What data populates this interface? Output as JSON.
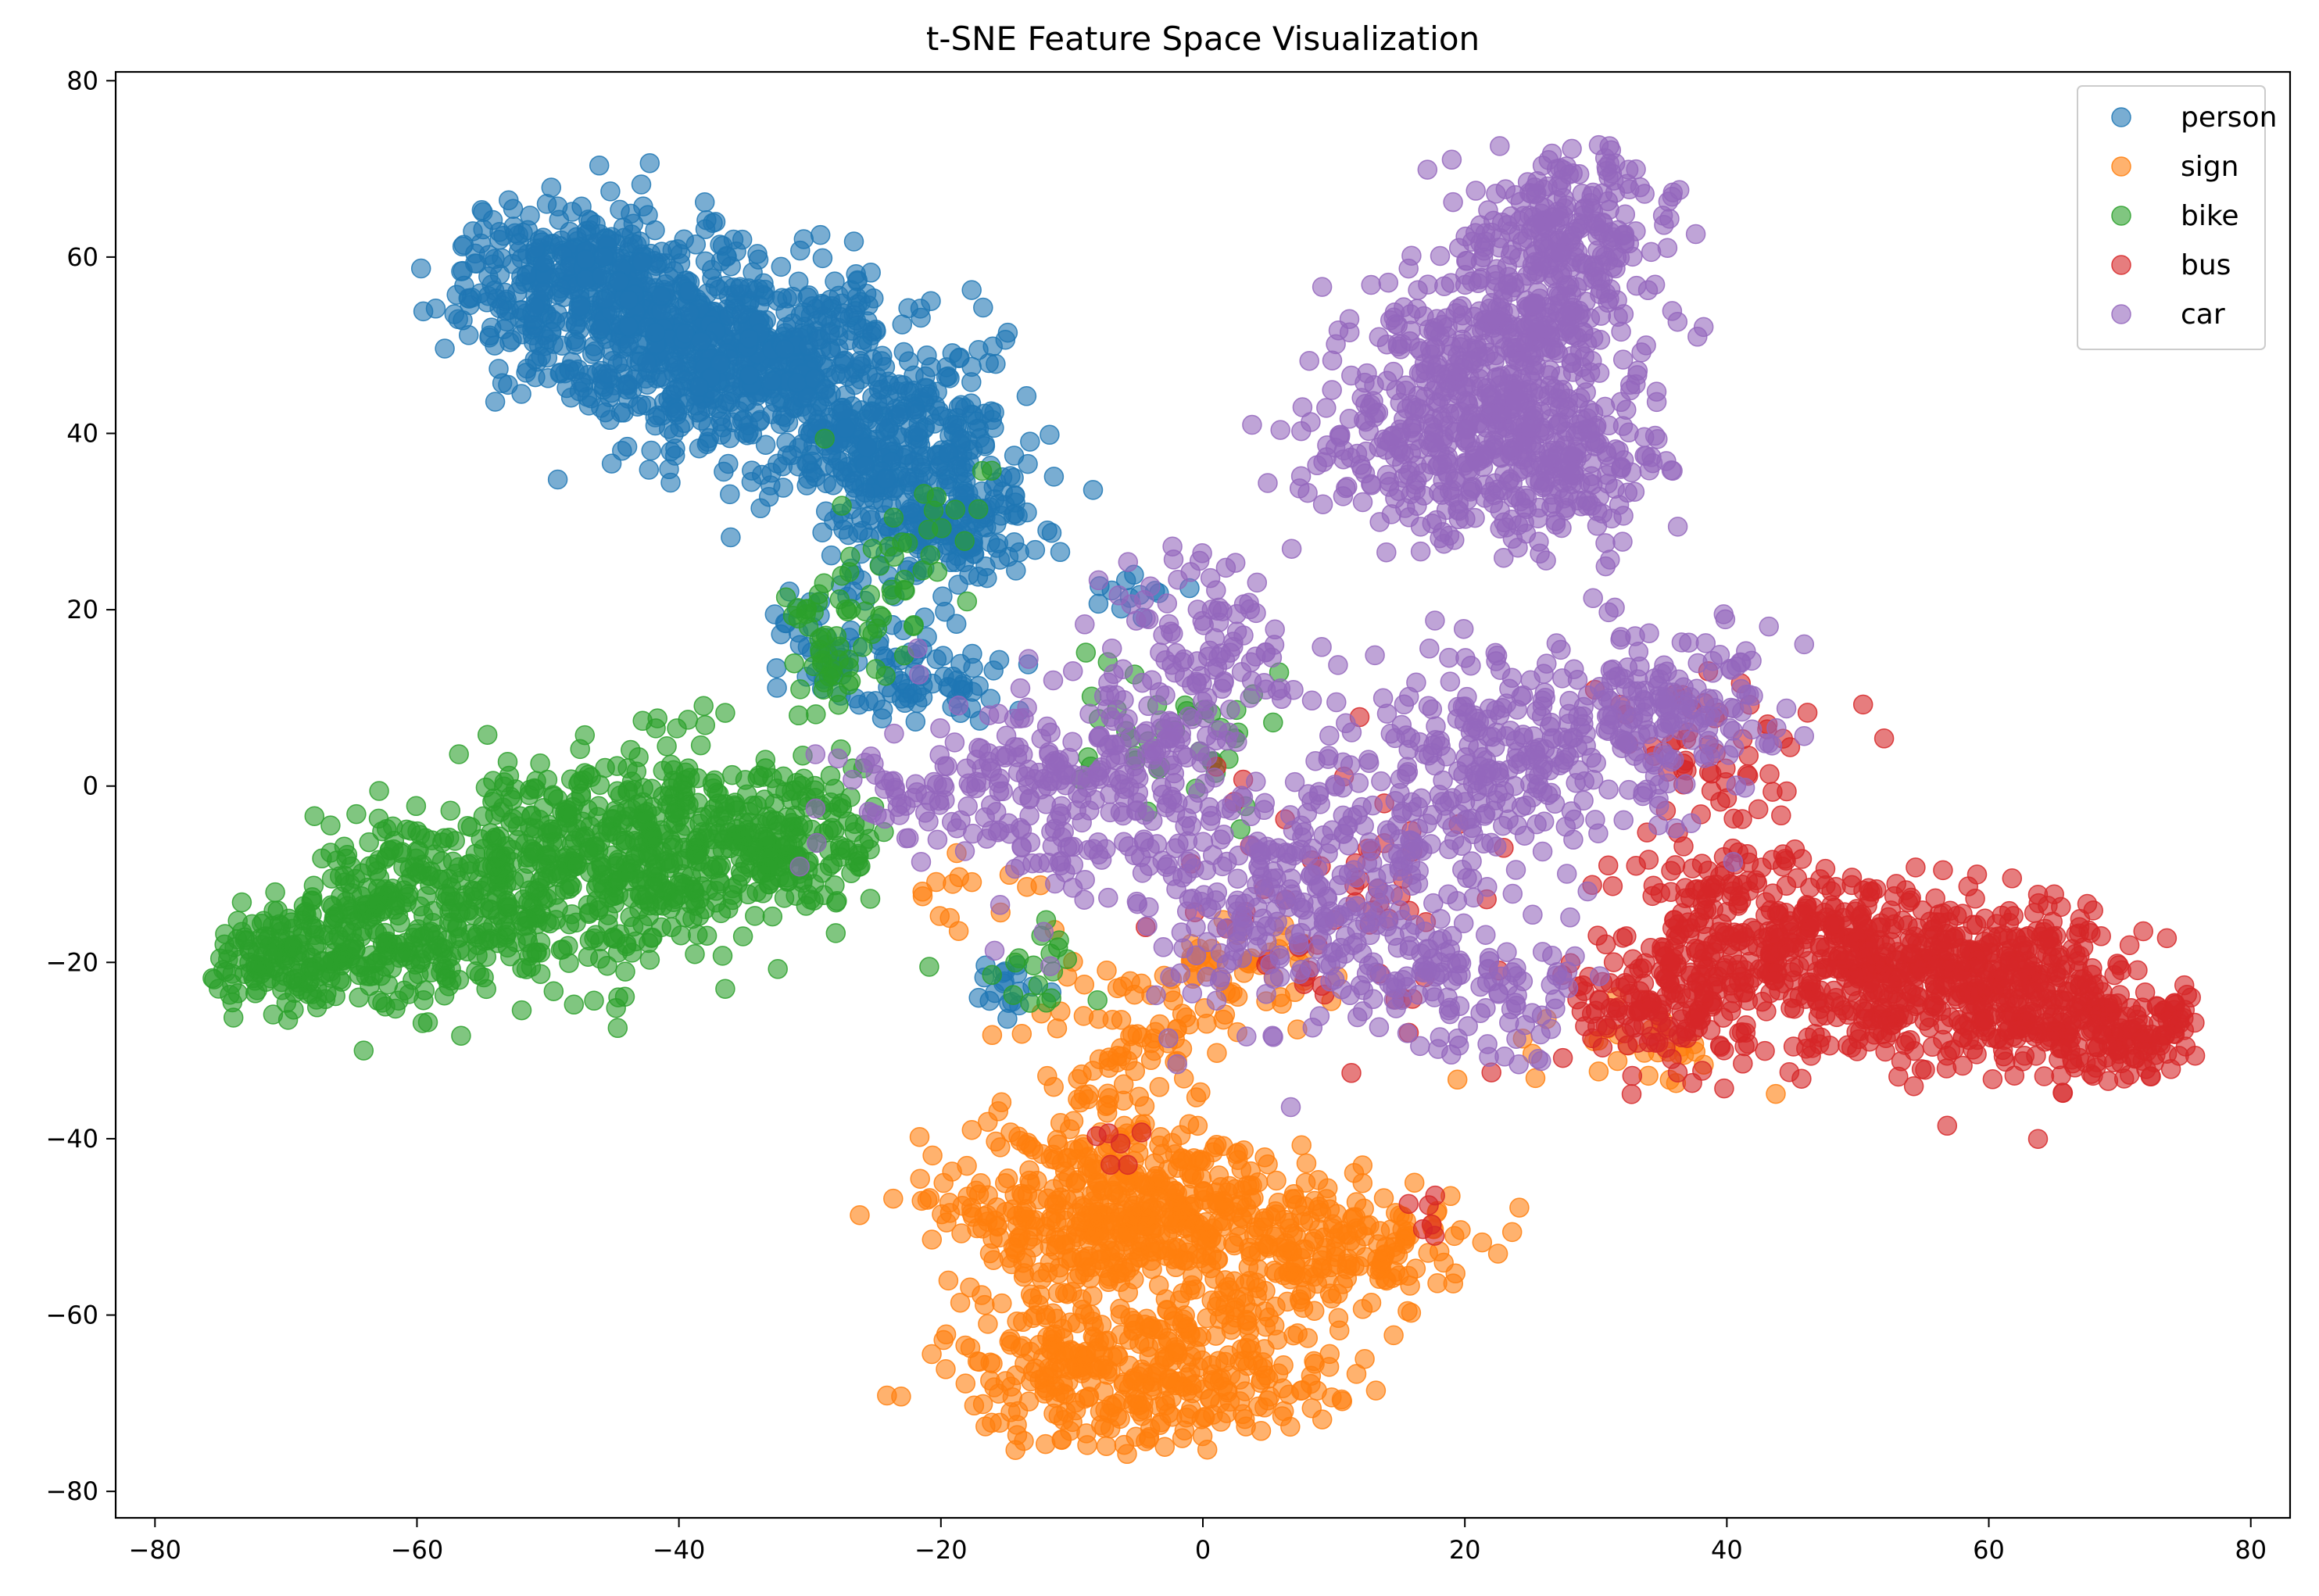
{
  "chart_data": {
    "type": "scatter",
    "title": "t-SNE Feature Space Visualization",
    "xlabel": "",
    "ylabel": "",
    "xlim": [
      -83,
      83
    ],
    "ylim": [
      -83,
      81
    ],
    "xticks": [
      -80,
      -60,
      -40,
      -20,
      0,
      20,
      40,
      60,
      80
    ],
    "yticks": [
      -80,
      -60,
      -40,
      -20,
      0,
      20,
      40,
      60,
      80
    ],
    "grid": false,
    "legend_position": "top-right",
    "marker_alpha": 0.6,
    "series": [
      {
        "name": "person",
        "color": "#1f77b4",
        "clusters": [
          {
            "cx": -48,
            "cy": 57,
            "sx": 4.5,
            "sy": 4.5,
            "n": 380
          },
          {
            "cx": -40,
            "cy": 50,
            "sx": 5.5,
            "sy": 5,
            "n": 380
          },
          {
            "cx": -32,
            "cy": 47,
            "sx": 5,
            "sy": 6,
            "n": 340
          },
          {
            "cx": -24,
            "cy": 40,
            "sx": 4.5,
            "sy": 5,
            "n": 280
          },
          {
            "cx": -20,
            "cy": 30,
            "sx": 4,
            "sy": 4,
            "n": 200
          },
          {
            "cx": -27,
            "cy": 16,
            "sx": 3,
            "sy": 3.5,
            "n": 60
          },
          {
            "cx": -20,
            "cy": 11,
            "sx": 3,
            "sy": 2.5,
            "n": 50
          },
          {
            "cx": -15,
            "cy": -23,
            "sx": 1.5,
            "sy": 1.5,
            "n": 18
          },
          {
            "cx": -5,
            "cy": 22,
            "sx": 2,
            "sy": 1.5,
            "n": 12
          }
        ]
      },
      {
        "name": "sign",
        "color": "#ff7f0e",
        "clusters": [
          {
            "cx": -10,
            "cy": -48,
            "sx": 5,
            "sy": 5,
            "n": 280
          },
          {
            "cx": -2,
            "cy": -50,
            "sx": 4.5,
            "sy": 5,
            "n": 240
          },
          {
            "cx": 10,
            "cy": -52,
            "sx": 5,
            "sy": 3.5,
            "n": 200
          },
          {
            "cx": -9,
            "cy": -66,
            "sx": 4.5,
            "sy": 4.5,
            "n": 220
          },
          {
            "cx": 2,
            "cy": -66,
            "sx": 4.5,
            "sy": 4,
            "n": 160
          },
          {
            "cx": -6,
            "cy": -30,
            "sx": 3.5,
            "sy": 5,
            "n": 80
          },
          {
            "cx": 3,
            "cy": -22,
            "sx": 3.5,
            "sy": 3.5,
            "n": 50
          },
          {
            "cx": 33,
            "cy": -30,
            "sx": 4,
            "sy": 2.5,
            "n": 30
          },
          {
            "cx": -18,
            "cy": -12,
            "sx": 2,
            "sy": 2,
            "n": 14
          }
        ]
      },
      {
        "name": "bike",
        "color": "#2ca02c",
        "clusters": [
          {
            "cx": -70,
            "cy": -20,
            "sx": 3.5,
            "sy": 3,
            "n": 160
          },
          {
            "cx": -61,
            "cy": -15,
            "sx": 4.5,
            "sy": 5,
            "n": 280
          },
          {
            "cx": -50,
            "cy": -10,
            "sx": 4.5,
            "sy": 6,
            "n": 300
          },
          {
            "cx": -41,
            "cy": -7,
            "sx": 4,
            "sy": 6,
            "n": 260
          },
          {
            "cx": -32,
            "cy": -6,
            "sx": 3.5,
            "sy": 4,
            "n": 190
          },
          {
            "cx": -28,
            "cy": 16,
            "sx": 2.5,
            "sy": 4,
            "n": 60
          },
          {
            "cx": -22,
            "cy": 27,
            "sx": 3,
            "sy": 5,
            "n": 30
          },
          {
            "cx": -2,
            "cy": 5,
            "sx": 4,
            "sy": 5,
            "n": 40
          },
          {
            "cx": -13,
            "cy": -20,
            "sx": 2,
            "sy": 3,
            "n": 18
          }
        ]
      },
      {
        "name": "bus",
        "color": "#d62728",
        "clusters": [
          {
            "cx": 70,
            "cy": -28,
            "sx": 3.5,
            "sy": 2.5,
            "n": 160
          },
          {
            "cx": 62,
            "cy": -23,
            "sx": 4.5,
            "sy": 5,
            "n": 320
          },
          {
            "cx": 52,
            "cy": -20,
            "sx": 4.5,
            "sy": 5,
            "n": 300
          },
          {
            "cx": 42,
            "cy": -18,
            "sx": 4,
            "sy": 6,
            "n": 240
          },
          {
            "cx": 35,
            "cy": -24,
            "sx": 3.5,
            "sy": 4,
            "n": 140
          },
          {
            "cx": 38,
            "cy": 2,
            "sx": 4,
            "sy": 8,
            "n": 60
          },
          {
            "cx": 10,
            "cy": -15,
            "sx": 7,
            "sy": 9,
            "n": 60
          },
          {
            "cx": 17,
            "cy": -49,
            "sx": 1,
            "sy": 1.5,
            "n": 6
          },
          {
            "cx": -6,
            "cy": -40,
            "sx": 2,
            "sy": 2,
            "n": 6
          }
        ]
      },
      {
        "name": "car",
        "color": "#9467bd",
        "clusters": [
          {
            "cx": 28,
            "cy": 62,
            "sx": 3.5,
            "sy": 6,
            "n": 260
          },
          {
            "cx": 22,
            "cy": 50,
            "sx": 4.5,
            "sy": 6,
            "n": 300
          },
          {
            "cx": 18,
            "cy": 38,
            "sx": 5,
            "sy": 5,
            "n": 260
          },
          {
            "cx": 28,
            "cy": 38,
            "sx": 4,
            "sy": 6,
            "n": 200
          },
          {
            "cx": 0,
            "cy": 15,
            "sx": 3.5,
            "sy": 6,
            "n": 110
          },
          {
            "cx": -10,
            "cy": 0,
            "sx": 6,
            "sy": 6,
            "n": 240
          },
          {
            "cx": 4,
            "cy": -12,
            "sx": 6,
            "sy": 7,
            "n": 200
          },
          {
            "cx": 13,
            "cy": -10,
            "sx": 4.5,
            "sy": 9,
            "n": 150
          },
          {
            "cx": 24,
            "cy": 3,
            "sx": 5,
            "sy": 6,
            "n": 220
          },
          {
            "cx": 35,
            "cy": 8,
            "sx": 5,
            "sy": 5,
            "n": 160
          },
          {
            "cx": 20,
            "cy": -22,
            "sx": 4.5,
            "sy": 4,
            "n": 100
          },
          {
            "cx": -22,
            "cy": 0,
            "sx": 4,
            "sy": 3,
            "n": 40
          }
        ]
      }
    ]
  }
}
